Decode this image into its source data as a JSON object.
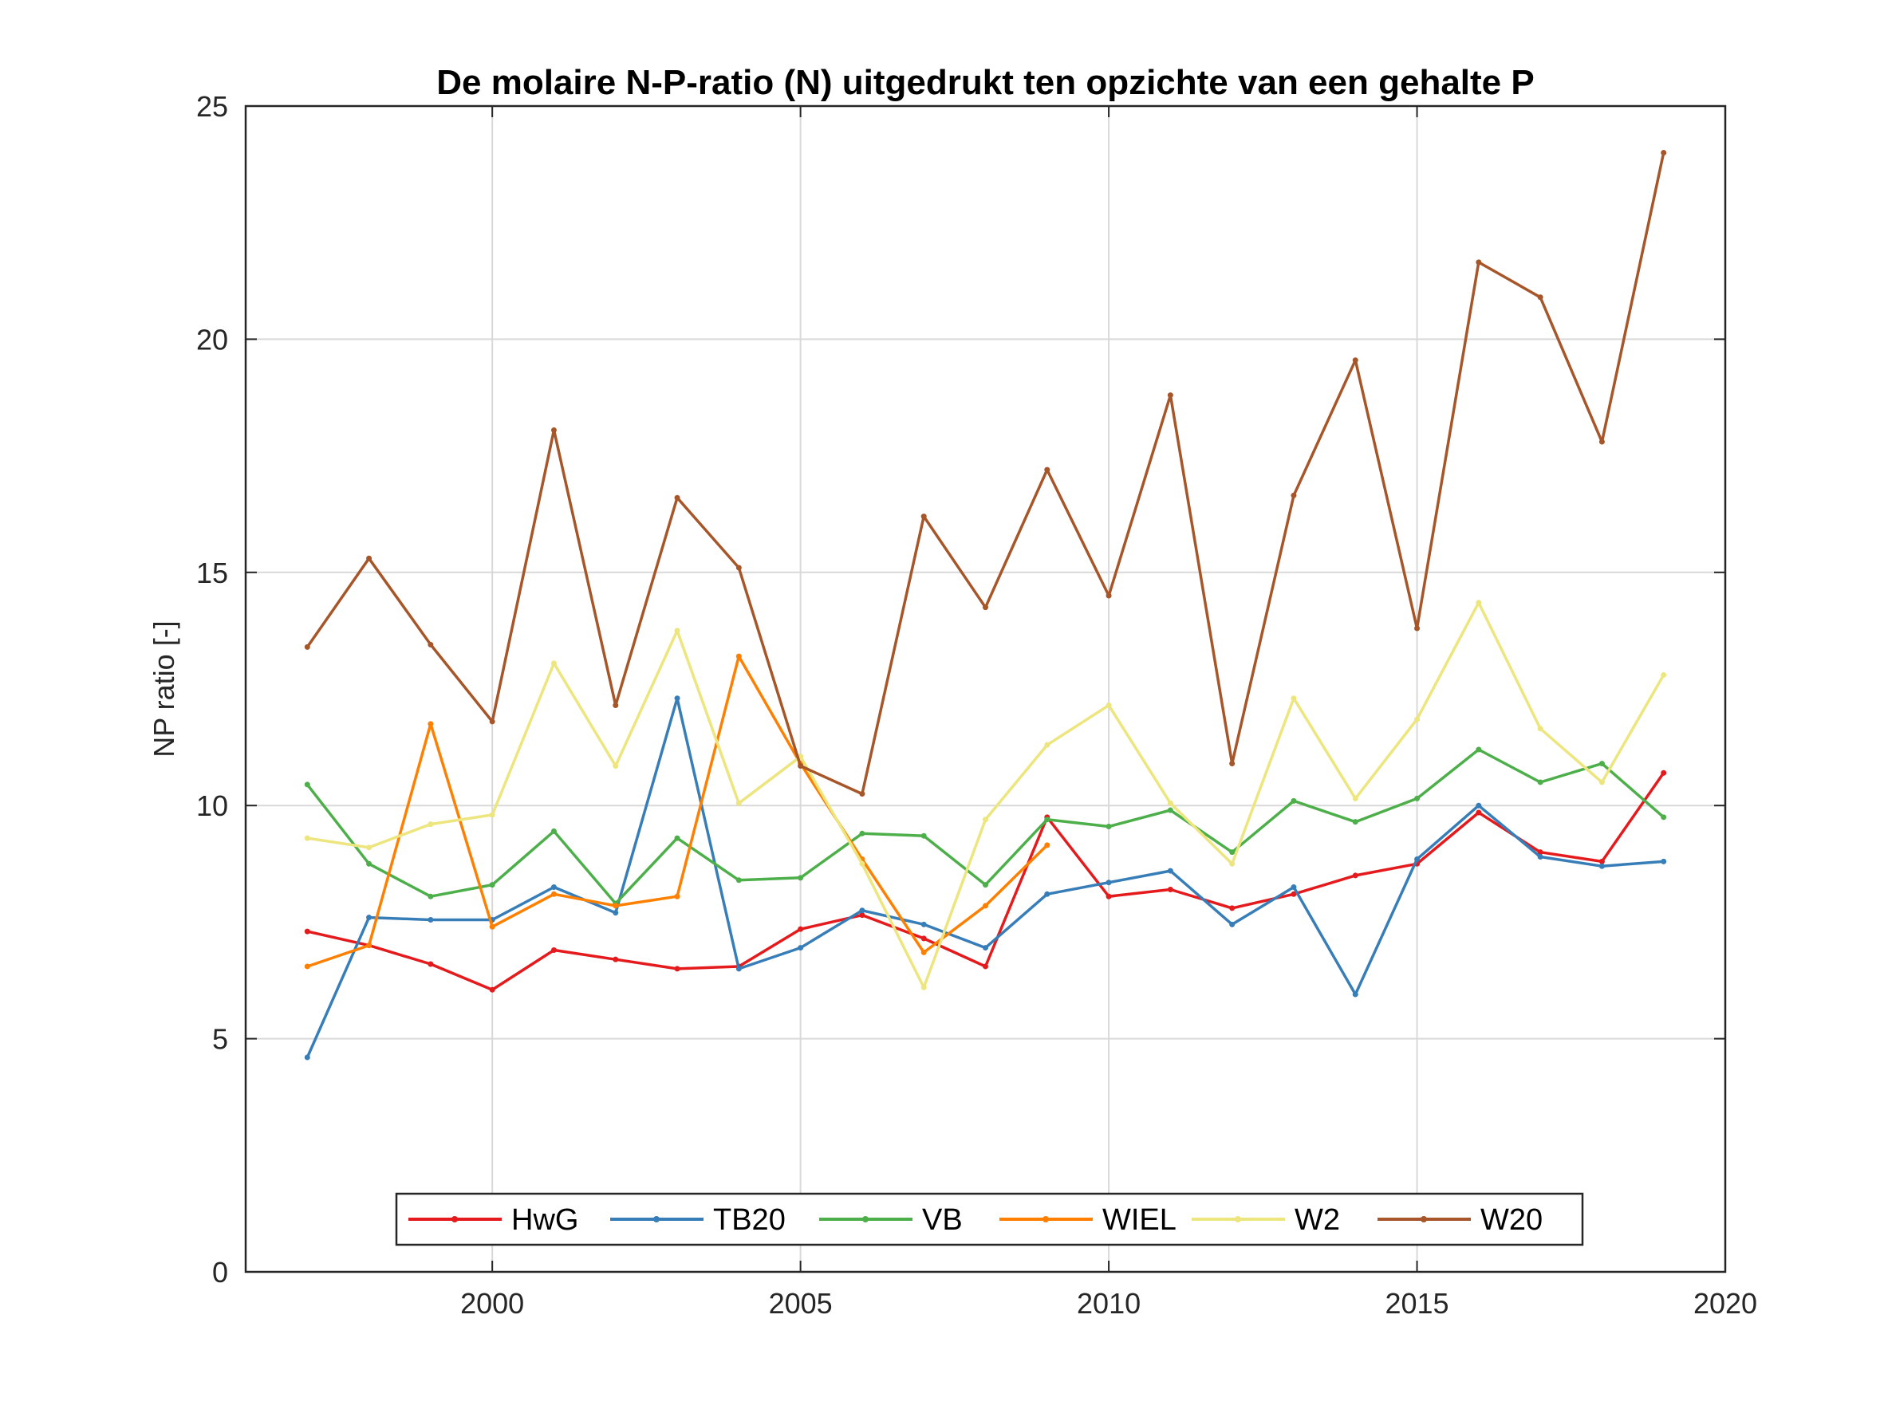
{
  "chart_data": {
    "type": "line",
    "title": "De molaire N-P-ratio (N) uitgedrukt ten opzichte van een gehalte P",
    "xlabel": "",
    "ylabel": "NP ratio [-]",
    "xlim": [
      1996,
      2020
    ],
    "ylim": [
      0,
      25
    ],
    "xticks": [
      "2000",
      "2005",
      "2010",
      "2015",
      "2020"
    ],
    "yticks": [
      "0",
      "5",
      "10",
      "15",
      "20",
      "25"
    ],
    "grid": true,
    "legend_position": "bottom",
    "x": [
      1997,
      1998,
      1999,
      2000,
      2001,
      2002,
      2003,
      2004,
      2005,
      2006,
      2007,
      2008,
      2009,
      2010,
      2011,
      2012,
      2013,
      2014,
      2015,
      2016,
      2017,
      2018,
      2019
    ],
    "series": [
      {
        "name": "HwG",
        "color": "#e41a1c",
        "values": [
          7.3,
          7.0,
          6.6,
          6.05,
          6.9,
          6.7,
          6.5,
          6.55,
          7.35,
          7.65,
          7.15,
          6.55,
          9.75,
          8.05,
          8.2,
          7.8,
          8.1,
          8.5,
          8.75,
          9.85,
          9.0,
          8.8,
          10.7
        ]
      },
      {
        "name": "TB20",
        "color": "#377eb8",
        "values": [
          4.6,
          7.6,
          7.55,
          7.55,
          8.25,
          7.7,
          12.3,
          6.5,
          6.95,
          7.75,
          7.45,
          6.95,
          8.1,
          8.35,
          8.6,
          7.45,
          8.25,
          5.95,
          8.85,
          10.0,
          8.9,
          8.7,
          8.8
        ]
      },
      {
        "name": "VB",
        "color": "#4daf4a",
        "values": [
          10.45,
          8.75,
          8.05,
          8.3,
          9.45,
          7.9,
          9.3,
          8.4,
          8.45,
          9.4,
          9.35,
          8.3,
          9.7,
          9.55,
          9.9,
          9.0,
          10.1,
          9.65,
          10.15,
          11.2,
          10.5,
          10.9,
          9.75
        ]
      },
      {
        "name": "WIEL",
        "color": "#ff7f00",
        "values": [
          6.55,
          7.0,
          11.75,
          7.4,
          8.1,
          7.85,
          8.05,
          13.2,
          10.9,
          8.85,
          6.85,
          7.85,
          9.15,
          null,
          null,
          null,
          null,
          null,
          null,
          null,
          null,
          null,
          null
        ]
      },
      {
        "name": "W2",
        "color": "#ede57e",
        "values": [
          9.3,
          9.1,
          9.6,
          9.8,
          13.05,
          10.85,
          13.75,
          10.05,
          11.05,
          8.75,
          6.1,
          9.7,
          11.3,
          12.15,
          10.05,
          8.75,
          12.3,
          10.15,
          11.85,
          14.35,
          11.65,
          10.5,
          12.8
        ]
      },
      {
        "name": "W20",
        "color": "#a65628",
        "values": [
          13.4,
          15.3,
          13.45,
          11.8,
          18.05,
          12.15,
          16.6,
          15.1,
          10.85,
          10.25,
          16.2,
          14.25,
          17.2,
          14.5,
          18.8,
          10.9,
          16.65,
          19.55,
          13.8,
          21.65,
          20.9,
          17.8,
          24.0
        ]
      }
    ]
  }
}
